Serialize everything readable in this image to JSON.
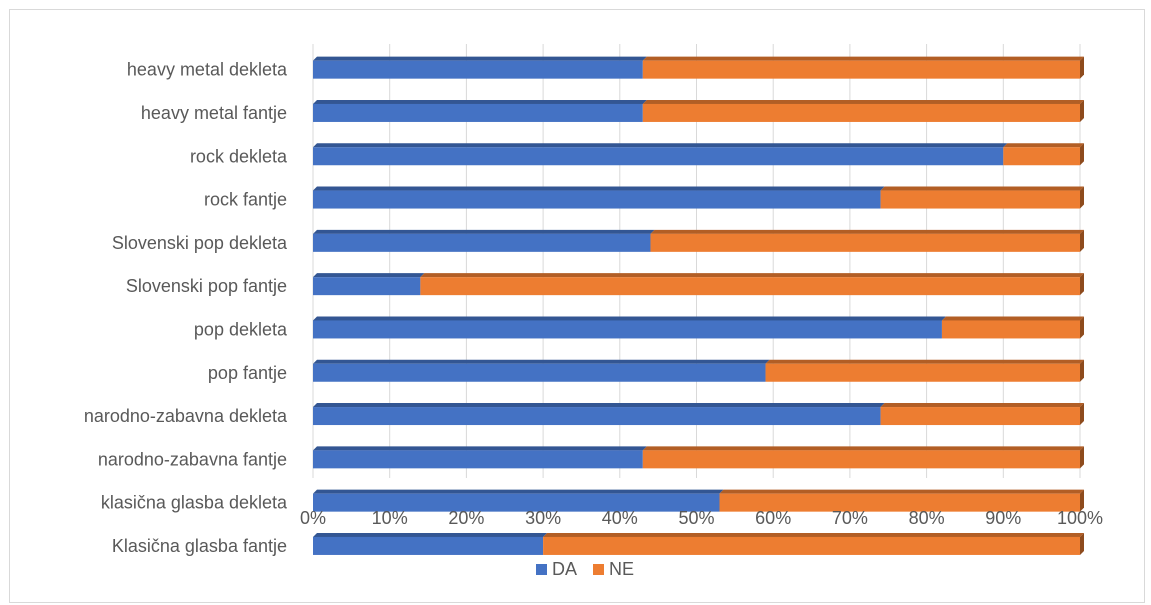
{
  "chart_data": {
    "type": "bar",
    "orientation": "horizontal",
    "stacked": "percent",
    "categories": [
      "heavy metal dekleta",
      "heavy metal fantje",
      "rock dekleta",
      "rock fantje",
      "Slovenski pop dekleta",
      "Slovenski pop fantje",
      "pop dekleta",
      "pop fantje",
      "narodno-zabavna dekleta",
      "narodno-zabavna fantje",
      "klasična glasba dekleta",
      "Klasična glasba fantje"
    ],
    "series": [
      {
        "name": "DA",
        "color": "#4472c4",
        "values": [
          43,
          43,
          90,
          74,
          44,
          14,
          82,
          59,
          74,
          43,
          53,
          30
        ]
      },
      {
        "name": "NE",
        "color": "#ed7d31",
        "values": [
          57,
          57,
          10,
          26,
          56,
          86,
          18,
          41,
          26,
          57,
          47,
          70
        ]
      }
    ],
    "x_ticks": [
      "0%",
      "10%",
      "20%",
      "30%",
      "40%",
      "50%",
      "60%",
      "70%",
      "80%",
      "90%",
      "100%"
    ],
    "xlim": [
      0,
      100
    ],
    "grid": true,
    "legend_position": "bottom"
  }
}
